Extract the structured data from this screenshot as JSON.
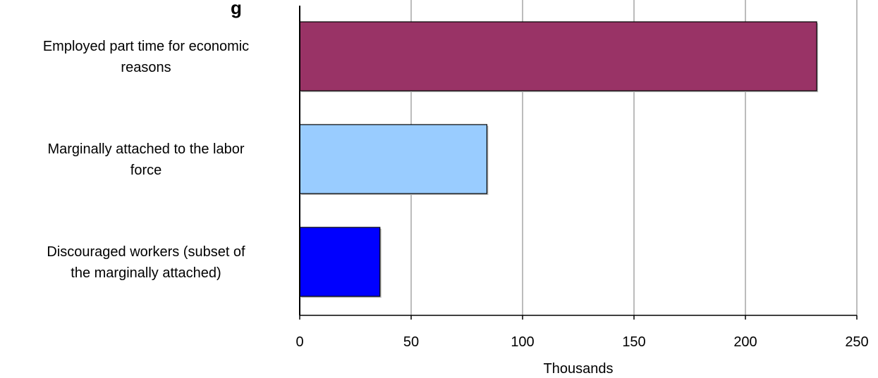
{
  "chart_data": {
    "type": "bar",
    "orientation": "horizontal",
    "title_fragment": "g",
    "categories": [
      [
        "Employed part time for economic",
        "reasons"
      ],
      [
        "Marginally attached to the labor",
        "force"
      ],
      [
        "Discouraged workers (subset of",
        "the marginally attached)"
      ]
    ],
    "values": [
      232,
      84,
      36
    ],
    "colors": [
      "#993366",
      "#99CCFF",
      "#0000FF"
    ],
    "xlabel": "Thousands",
    "xlim": [
      0,
      250
    ],
    "xticks": [
      0,
      50,
      100,
      150,
      200,
      250
    ],
    "grid": "vertical"
  }
}
